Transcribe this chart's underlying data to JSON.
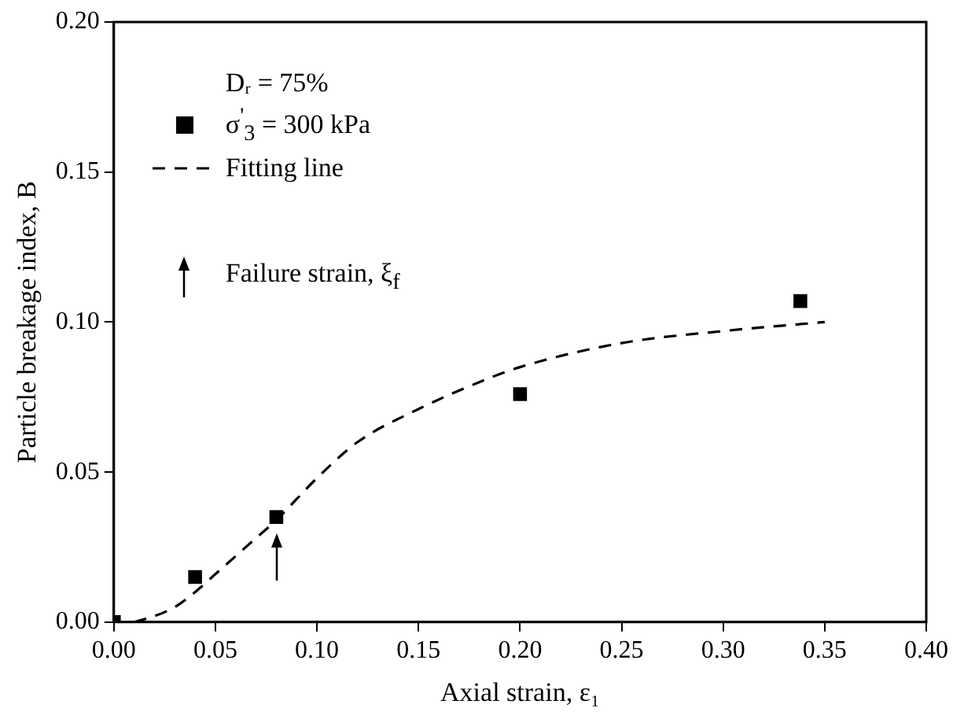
{
  "chart_data": {
    "type": "scatter",
    "xlabel": "Axial strain, ε₁",
    "ylabel": "Particle breakage index, B",
    "legend_title": "Dᵣ = 75%",
    "series": [
      {
        "name": "σ$^{'}$$_{3}$ = 300 kPa",
        "type": "scatter",
        "color": "#000000",
        "marker": "square",
        "x": [
          0,
          0.04,
          0.08,
          0.2,
          0.338
        ],
        "values": [
          0,
          0.015,
          0.035,
          0.076,
          0.107
        ]
      },
      {
        "name": "Fitting line",
        "type": "line",
        "color": "#000000",
        "marker": "none",
        "line_style": "dashed",
        "x": [
          0.01,
          0.02,
          0.03,
          0.04,
          0.05,
          0.06,
          0.07,
          0.08,
          0.09,
          0.1,
          0.12,
          0.15,
          0.18,
          0.2,
          0.25,
          0.3,
          0.35
        ],
        "values": [
          0,
          0.002,
          0.005,
          0.01,
          0.016,
          0.022,
          0.028,
          0.034,
          0.041,
          0.048,
          0.06,
          0.071,
          0.08,
          0.085,
          0.093,
          0.097,
          0.1
        ]
      }
    ],
    "annotations": [
      "Failure strain, ξ$_{f}$"
    ],
    "xlim": [
      0,
      0.4
    ],
    "xticks": [
      {
        "value": 0,
        "label": "0.00"
      },
      {
        "value": 0.05,
        "label": "0.05"
      },
      {
        "value": 0.1,
        "label": "0.10"
      },
      {
        "value": 0.15,
        "label": "0.15"
      },
      {
        "value": 0.2,
        "label": "0.20"
      },
      {
        "value": 0.25,
        "label": "0.25"
      },
      {
        "value": 0.3,
        "label": "0.30"
      },
      {
        "value": 0.35,
        "label": "0.35"
      },
      {
        "value": 0.4,
        "label": "0.40"
      }
    ],
    "ylim": [
      0,
      0.2
    ],
    "yticks": [
      {
        "value": 0,
        "label": "0.00"
      },
      {
        "value": 0.05,
        "label": "0.05"
      },
      {
        "value": 0.1,
        "label": "0.10"
      },
      {
        "value": 0.15,
        "label": "0.15"
      },
      {
        "value": 0.2,
        "label": "0.20"
      }
    ],
    "grid": false,
    "legend": "top left"
  }
}
